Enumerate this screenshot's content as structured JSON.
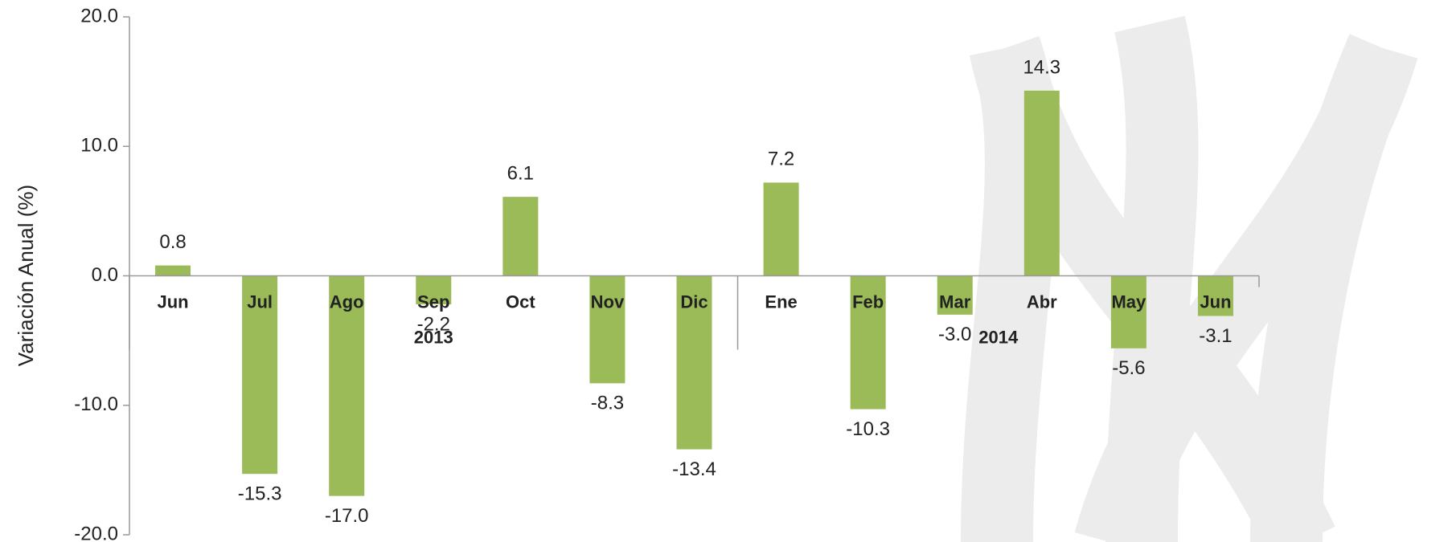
{
  "chart_data": {
    "type": "bar",
    "y_label": "Variación Anual (%)",
    "categories": [
      "Jun",
      "Jul",
      "Ago",
      "Sep",
      "Oct",
      "Nov",
      "Dic",
      "Ene",
      "Feb",
      "Mar",
      "Abr",
      "May",
      "Jun"
    ],
    "group_labels": [
      "2013",
      "2014"
    ],
    "values": [
      0.8,
      -15.3,
      -17.0,
      -2.2,
      6.1,
      -8.3,
      -13.4,
      7.2,
      -10.3,
      -3.0,
      14.3,
      -5.6,
      -3.1
    ],
    "value_labels": [
      "0.8",
      "-15.3",
      "-17.0",
      "-2.2",
      "6.1",
      "-8.3",
      "-13.4",
      "7.2",
      "-10.3",
      "-3.0",
      "14.3",
      "-5.6",
      "-3.1"
    ],
    "color": "#9bbb59",
    "ylim": [
      -20,
      20
    ],
    "yticks": [
      {
        "value": -20,
        "label": "-20.0"
      },
      {
        "value": -10,
        "label": "-10.0"
      },
      {
        "value": 0,
        "label": "0.0"
      },
      {
        "value": 10,
        "label": "10.0"
      },
      {
        "value": 20,
        "label": "20.0"
      }
    ]
  }
}
